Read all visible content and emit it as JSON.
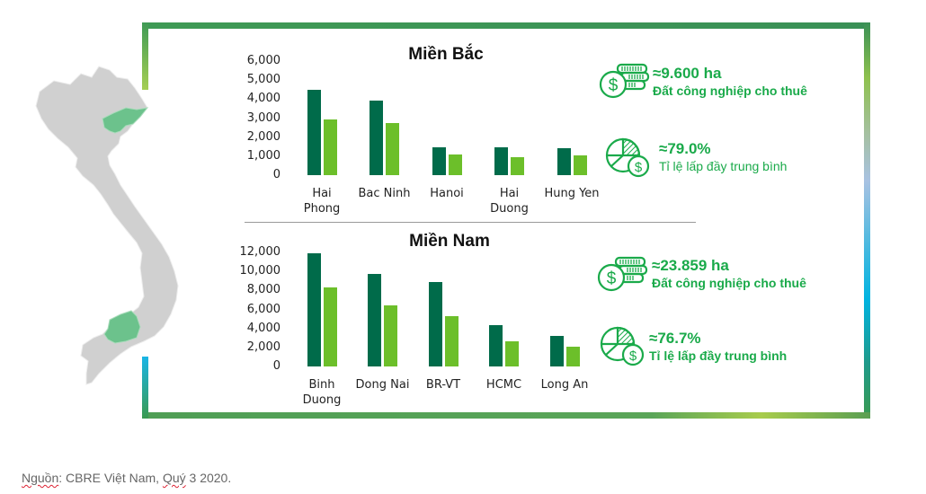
{
  "chart_data": [
    {
      "type": "bar",
      "title": "Miền Bắc",
      "categories": [
        "Hai Phong",
        "Bac Ninh",
        "Hanoi",
        "Hai Duong",
        "Hung Yen"
      ],
      "category_lines": [
        [
          "Hai",
          "Phong"
        ],
        [
          "Bac Ninh"
        ],
        [
          "Hanoi"
        ],
        [
          "Hai",
          "Duong"
        ],
        [
          "Hung Yen"
        ]
      ],
      "series": [
        {
          "name": "series-1",
          "color": "#006b4a",
          "values": [
            4500,
            3930,
            1480,
            1450,
            1420
          ]
        },
        {
          "name": "series-2",
          "color": "#6cbf2a",
          "values": [
            2950,
            2720,
            1090,
            960,
            1020
          ]
        }
      ],
      "yticks": [
        "6,000",
        "5,000",
        "4,000",
        "3,000",
        "2,000",
        "1,000",
        "0"
      ],
      "ylim": [
        0,
        6000
      ],
      "xlabel": "",
      "ylabel": "",
      "grid": false,
      "legend": "none"
    },
    {
      "type": "bar",
      "title": "Miền Nam",
      "categories": [
        "Binh Duong",
        "Dong Nai",
        "BR-VT",
        "HCMC",
        "Long An"
      ],
      "category_lines": [
        [
          "Binh",
          "Duong"
        ],
        [
          "Dong Nai"
        ],
        [
          "BR-VT"
        ],
        [
          "HCMC"
        ],
        [
          "Long An"
        ]
      ],
      "series": [
        {
          "name": "series-1",
          "color": "#006b4a",
          "values": [
            11900,
            9690,
            8900,
            4320,
            3180
          ]
        },
        {
          "name": "series-2",
          "color": "#6cbf2a",
          "values": [
            8290,
            6420,
            5280,
            2640,
            2100
          ]
        }
      ],
      "yticks": [
        "12,000",
        "10,000",
        "8,000",
        "6,000",
        "4,000",
        "2,000",
        "0"
      ],
      "ylim": [
        0,
        12000
      ],
      "xlabel": "",
      "ylabel": "",
      "grid": false,
      "legend": "none"
    }
  ],
  "stats": {
    "north": {
      "land_value": "≈9.600 ha",
      "land_label": "Đất công nghiệp cho thuê",
      "occupancy_value": "≈79.0%",
      "occupancy_label": "Tỉ lệ lấp đầy trung bình"
    },
    "south": {
      "land_value": "≈23.859 ha",
      "land_label": "Đất công nghiệp cho thuê",
      "occupancy_value": "≈76.7%",
      "occupancy_label": "Tỉ lệ lấp đầy trung bình"
    }
  },
  "icons": {
    "land": "coin-stack-dollar-icon",
    "occupancy": "pie-chart-dollar-icon"
  },
  "colors": {
    "accent_green": "#1aaa4a",
    "bar_dark": "#006b4a",
    "bar_light": "#6cbf2a",
    "map_gray": "#d0d0d0",
    "map_highlight": "#6cc28c"
  },
  "footer": {
    "source_word": "Nguồn",
    "source_rest": ": CBRE Việt Nam, ",
    "quarter_word": "Quý",
    "quarter_rest": " 3 2020."
  }
}
